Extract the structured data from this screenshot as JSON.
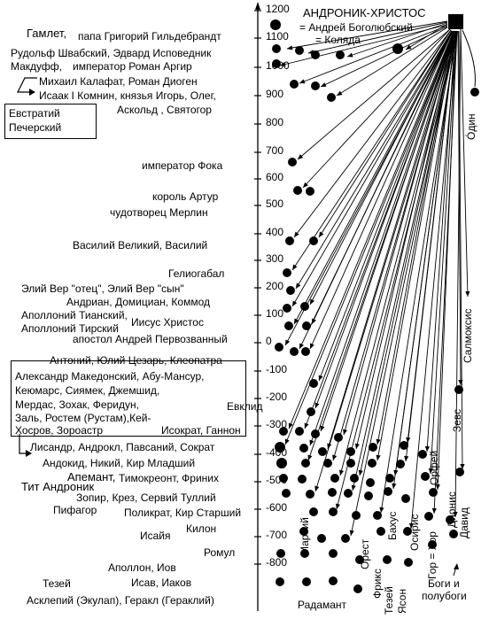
{
  "header": {
    "title": "АНДРОНИК-ХРИСТОС",
    "line2": "= Андрей Боголюбский",
    "line3": "= Коляда"
  },
  "axis": {
    "ticks": [
      "1200",
      "1100",
      "1000",
      "900",
      "800",
      "700",
      "600",
      "500",
      "400",
      "300",
      "200",
      "100",
      "0",
      "-100",
      "-200",
      "-300",
      "-400",
      "-500",
      "-600",
      "-700",
      "-800"
    ]
  },
  "left_labels": {
    "gamlet": "Гамлет,",
    "papa": "папа Григорий Гильдебрандт",
    "rudolf": "Рудольф Швабский, Эдвард Исповедник",
    "makduf": "Макдуфф,",
    "roman": "император Роман Аргир",
    "kalafat": "Михаил Калафат, Роман Диоген",
    "isaak": "Исаак I Комнин, князья Игорь, Олег,",
    "askold": "Аскольд , Святогор",
    "evstratiy": "Евстратий",
    "pechersky": "Печерский",
    "foka": "император Фока",
    "artur": "король Артур",
    "merlin": "чудотворец Мерлин",
    "vasiliy": "Василий Великий,  Василий",
    "geliogabal": "Гелиогабал",
    "eliy": "Элий Вер \"отец\", Элий Вер \"сын\"",
    "andrian": "Андриан, Домициан,  Коммод",
    "apollony1": "Аполлоний Тианский,",
    "apollony2": "Аполлоний Тирский",
    "iisus": "Иисус Христос",
    "andrey": "апостол Андрей Первозванный",
    "antony": "Антоний, Юлий Цезарь, Клеопатра",
    "box2_l1": "Александр Македонский, Абу-Мансур,",
    "box2_l2": "Кеюмарс, Сиямек, Джемшид,",
    "box2_l3": "Мердас, Зохак, Феридун,",
    "box2_l4": "Заль, Ростем (Рустам),Кей-",
    "box2_l5": "Хосров, Зороастр",
    "evklid": "Евклид",
    "isokrat": "Исократ, Ганнон",
    "lisandr": "Лисандр, Андрокл, Павсаний, Сократ",
    "andokid": "Андокид, Никий, Кир Младший",
    "apemant": "Апемант,",
    "timokreont": "Тимокреонт, Фриних",
    "tit": "Тит Андроник",
    "zopir": "Зопир, Крез, Сервий Туллий",
    "pifagor": "Пифагор",
    "polikrat": "Поликрат, Кир Старший",
    "kilon": "Килон",
    "isaya": "Исайя",
    "romul": "Ромул",
    "apollon": "Аполлон, Иов",
    "tezey": "Тезей",
    "isav": "Исав, Иаков",
    "asklepiy": "Асклепий (Экулап), Геракл (Гераклий)"
  },
  "right_labels": {
    "odin": "Óдин",
    "salmoksis": "Салмоксис",
    "zevs": "Зевс",
    "orfey": "Орфей",
    "david": "Давид",
    "dionis": "Дионис",
    "gor": "Гор = Хор",
    "osiris": "Осирис",
    "bakhus": "Бахус",
    "orest": "Орест",
    "friks": "Фрикс",
    "tezey2": "Тезей",
    "yason": "Ясон",
    "marsiy": "Марсий",
    "radamant": "Радамант",
    "bogi1": "Боги и",
    "bogi2": "полубоги"
  }
}
